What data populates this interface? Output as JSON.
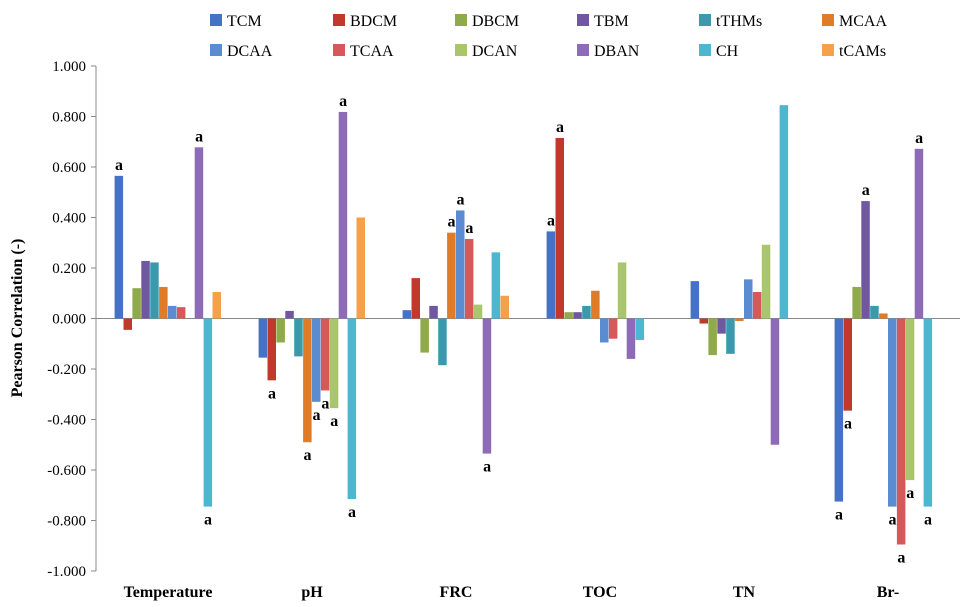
{
  "chart_data": {
    "type": "bar",
    "title": "",
    "xlabel": "",
    "ylabel": "Pearson Correlation (-)",
    "ylim": [
      -1.0,
      1.0
    ],
    "ytick_step": 0.2,
    "ytick_labels": [
      "1.000",
      "0.800",
      "0.600",
      "0.400",
      "0.200",
      "0.000",
      "-0.200",
      "-0.400",
      "-0.600",
      "-0.800",
      "-1.000"
    ],
    "grid": false,
    "legend_position": "top",
    "categories": [
      "Temperature",
      "pH",
      "FRC",
      "TOC",
      "TN",
      "Br-"
    ],
    "series": [
      {
        "name": "TCM",
        "color": "#4472c4",
        "values": [
          0.565,
          -0.155,
          0.033,
          0.345,
          0.148,
          -0.725
        ],
        "annotations": [
          "a",
          "",
          "",
          "a",
          "",
          "a"
        ]
      },
      {
        "name": "BDCM",
        "color": "#c0392b",
        "values": [
          -0.045,
          -0.245,
          0.16,
          0.715,
          -0.02,
          -0.365
        ],
        "annotations": [
          "",
          "a",
          "",
          "a",
          "",
          "a"
        ]
      },
      {
        "name": "DBCM",
        "color": "#8faa4a",
        "values": [
          0.12,
          -0.095,
          -0.135,
          0.025,
          -0.145,
          0.125
        ],
        "annotations": [
          "",
          "",
          "",
          "",
          "",
          ""
        ]
      },
      {
        "name": "TBM",
        "color": "#7156a0",
        "values": [
          0.228,
          0.03,
          0.05,
          0.025,
          -0.06,
          0.465
        ],
        "annotations": [
          "",
          "",
          "",
          "",
          "",
          "a"
        ]
      },
      {
        "name": "tTHMs",
        "color": "#3c99ad",
        "values": [
          0.222,
          -0.15,
          -0.185,
          0.05,
          -0.14,
          0.05
        ],
        "annotations": [
          "",
          "",
          "",
          "",
          "",
          ""
        ]
      },
      {
        "name": "MCAA",
        "color": "#e07c27",
        "values": [
          0.125,
          -0.49,
          0.34,
          0.11,
          -0.01,
          0.02
        ],
        "annotations": [
          "",
          "a",
          "a",
          "",
          "",
          ""
        ]
      },
      {
        "name": "DCAA",
        "color": "#5b8bd0",
        "values": [
          0.05,
          -0.33,
          0.428,
          -0.095,
          0.155,
          -0.745
        ],
        "annotations": [
          "",
          "a",
          "a",
          "",
          "",
          "a"
        ]
      },
      {
        "name": "TCAA",
        "color": "#d8575b",
        "values": [
          0.045,
          -0.285,
          0.315,
          -0.08,
          0.105,
          -0.895
        ],
        "annotations": [
          "",
          "a",
          "a",
          "",
          "",
          "a"
        ]
      },
      {
        "name": "DCAN",
        "color": "#a9c66a",
        "values": [
          0.0,
          -0.355,
          0.055,
          0.222,
          0.292,
          -0.64
        ],
        "annotations": [
          "",
          "a",
          "",
          "",
          "",
          "a"
        ]
      },
      {
        "name": "DBAN",
        "color": "#8e6bb8",
        "values": [
          0.678,
          0.818,
          -0.535,
          -0.16,
          -0.5,
          0.672
        ],
        "annotations": [
          "a",
          "a",
          "a",
          "",
          "",
          "a"
        ]
      },
      {
        "name": "CH",
        "color": "#4bb8d0",
        "values": [
          -0.745,
          -0.715,
          0.262,
          -0.085,
          0.845,
          -0.745
        ],
        "annotations": [
          "a",
          "a",
          "",
          "",
          "",
          "a"
        ]
      },
      {
        "name": "tCAMs",
        "color": "#f5a04a",
        "values": [
          0.105,
          0.4,
          0.09,
          0.0,
          0.0,
          0.0
        ],
        "annotations": [
          "",
          "",
          "",
          "",
          "",
          ""
        ]
      }
    ]
  }
}
